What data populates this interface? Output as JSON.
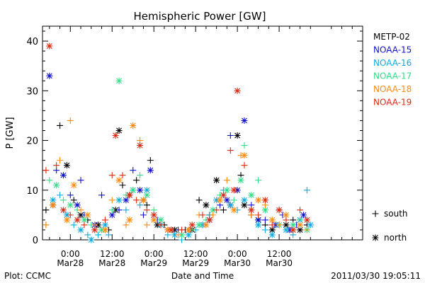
{
  "chart_data": {
    "type": "scatter",
    "title": "Hemispheric Power [GW]",
    "ylabel": "P [GW]",
    "xlabel": "Date and Time",
    "ylim": [
      0,
      43
    ],
    "xlim": [
      -8,
      84
    ],
    "yticks": [
      0,
      10,
      20,
      30,
      40
    ],
    "xticks": [
      {
        "x": 0,
        "time": "0:00",
        "date": "Mar28"
      },
      {
        "x": 12,
        "time": "12:00",
        "date": "Mar28"
      },
      {
        "x": 24,
        "time": "0:00",
        "date": "Mar29"
      },
      {
        "x": 36,
        "time": "12:00",
        "date": "Mar29"
      },
      {
        "x": 48,
        "time": "0:00",
        "date": "Mar30"
      },
      {
        "x": 60,
        "time": "12:00",
        "date": "Mar30"
      }
    ],
    "x_units": "hours from 2011-03-28 00:00 UT",
    "series": [
      {
        "name": "METP-02",
        "color": "#000000",
        "points": [
          [
            -7,
            6,
            "s"
          ],
          [
            -5,
            7,
            "n"
          ],
          [
            -3,
            23,
            "s"
          ],
          [
            -1,
            15,
            "n"
          ],
          [
            1,
            8,
            "s"
          ],
          [
            3,
            5,
            "n"
          ],
          [
            5,
            4,
            "s"
          ],
          [
            8,
            3,
            "n"
          ],
          [
            11,
            2,
            "s"
          ],
          [
            13,
            6,
            "n"
          ],
          [
            14,
            22,
            "n"
          ],
          [
            15,
            11,
            "s"
          ],
          [
            17,
            9,
            "n"
          ],
          [
            19,
            12,
            "s"
          ],
          [
            21,
            8,
            "n"
          ],
          [
            22,
            7,
            "s"
          ],
          [
            23,
            16,
            "s"
          ],
          [
            25,
            3,
            "n"
          ],
          [
            27,
            3,
            "s"
          ],
          [
            30,
            2,
            "n"
          ],
          [
            33,
            2,
            "s"
          ],
          [
            35,
            2,
            "n"
          ],
          [
            37,
            8,
            "s"
          ],
          [
            39,
            7,
            "n"
          ],
          [
            40,
            5,
            "s"
          ],
          [
            42,
            12,
            "n"
          ],
          [
            44,
            6,
            "s"
          ],
          [
            46,
            7,
            "n"
          ],
          [
            48,
            21,
            "n"
          ],
          [
            49,
            13,
            "s"
          ],
          [
            50,
            7,
            "n"
          ],
          [
            52,
            5,
            "s"
          ],
          [
            54,
            4,
            "n"
          ],
          [
            56,
            3,
            "s"
          ],
          [
            58,
            2,
            "n"
          ],
          [
            60,
            6,
            "s"
          ],
          [
            62,
            3,
            "n"
          ],
          [
            64,
            4,
            "s"
          ],
          [
            66,
            2,
            "n"
          ],
          [
            68,
            3,
            "s"
          ]
        ]
      },
      {
        "name": "NOAA-15",
        "color": "#1010cc",
        "points": [
          [
            -6,
            33,
            "n"
          ],
          [
            -4,
            14,
            "s"
          ],
          [
            -2,
            13,
            "n"
          ],
          [
            0,
            9,
            "s"
          ],
          [
            2,
            7,
            "n"
          ],
          [
            3,
            12,
            "s"
          ],
          [
            4,
            5,
            "s"
          ],
          [
            7,
            3,
            "n"
          ],
          [
            9,
            9,
            "s"
          ],
          [
            12,
            5,
            "n"
          ],
          [
            14,
            6,
            "s"
          ],
          [
            16,
            8,
            "n"
          ],
          [
            18,
            14,
            "s"
          ],
          [
            20,
            10,
            "n"
          ],
          [
            21,
            5,
            "s"
          ],
          [
            23,
            14,
            "n"
          ],
          [
            25,
            4,
            "s"
          ],
          [
            28,
            2,
            "n"
          ],
          [
            31,
            2,
            "s"
          ],
          [
            34,
            2,
            "n"
          ],
          [
            38,
            3,
            "s"
          ],
          [
            40,
            4,
            "n"
          ],
          [
            43,
            7,
            "s"
          ],
          [
            45,
            8,
            "n"
          ],
          [
            46,
            21,
            "s"
          ],
          [
            48,
            10,
            "n"
          ],
          [
            50,
            24,
            "n"
          ],
          [
            52,
            7,
            "s"
          ],
          [
            54,
            4,
            "n"
          ],
          [
            56,
            4,
            "s"
          ],
          [
            59,
            3,
            "n"
          ],
          [
            61,
            5,
            "s"
          ],
          [
            63,
            2,
            "n"
          ],
          [
            65,
            3,
            "s"
          ],
          [
            67,
            5,
            "n"
          ]
        ]
      },
      {
        "name": "NOAA-16",
        "color": "#10aadd",
        "points": [
          [
            -7,
            3,
            "s"
          ],
          [
            -5,
            8,
            "n"
          ],
          [
            -3,
            9,
            "s"
          ],
          [
            -1,
            5,
            "n"
          ],
          [
            1,
            3,
            "s"
          ],
          [
            3,
            2,
            "n"
          ],
          [
            5,
            1,
            "s"
          ],
          [
            6,
            0,
            "n"
          ],
          [
            8,
            1,
            "s"
          ],
          [
            10,
            3,
            "n"
          ],
          [
            11,
            1,
            "s"
          ],
          [
            14,
            8,
            "n"
          ],
          [
            16,
            6,
            "s"
          ],
          [
            18,
            10,
            "n"
          ],
          [
            20,
            7,
            "s"
          ],
          [
            22,
            10,
            "n"
          ],
          [
            24,
            5,
            "s"
          ],
          [
            26,
            3,
            "n"
          ],
          [
            28,
            1,
            "s"
          ],
          [
            30,
            1,
            "n"
          ],
          [
            32,
            0,
            "s"
          ],
          [
            34,
            1,
            "n"
          ],
          [
            36,
            2,
            "s"
          ],
          [
            38,
            3,
            "n"
          ],
          [
            40,
            5,
            "s"
          ],
          [
            42,
            8,
            "n"
          ],
          [
            44,
            10,
            "s"
          ],
          [
            46,
            7,
            "n"
          ],
          [
            48,
            6,
            "s"
          ],
          [
            50,
            8,
            "n"
          ],
          [
            52,
            6,
            "s"
          ],
          [
            54,
            3,
            "n"
          ],
          [
            56,
            2,
            "s"
          ],
          [
            58,
            1,
            "n"
          ],
          [
            60,
            3,
            "s"
          ],
          [
            62,
            2,
            "n"
          ],
          [
            64,
            1,
            "s"
          ],
          [
            66,
            4,
            "n"
          ],
          [
            68,
            10,
            "s"
          ],
          [
            69,
            3,
            "n"
          ]
        ]
      },
      {
        "name": "NOAA-17",
        "color": "#33dd88",
        "points": [
          [
            -6,
            12,
            "s"
          ],
          [
            -4,
            11,
            "n"
          ],
          [
            -2,
            8,
            "s"
          ],
          [
            0,
            7,
            "n"
          ],
          [
            2,
            6,
            "s"
          ],
          [
            4,
            4,
            "n"
          ],
          [
            6,
            3,
            "s"
          ],
          [
            9,
            2,
            "n"
          ],
          [
            12,
            6,
            "s"
          ],
          [
            14,
            32,
            "n"
          ],
          [
            16,
            9,
            "s"
          ],
          [
            18,
            10,
            "n"
          ],
          [
            20,
            13,
            "s"
          ],
          [
            22,
            9,
            "n"
          ],
          [
            24,
            6,
            "s"
          ],
          [
            26,
            4,
            "n"
          ],
          [
            29,
            2,
            "s"
          ],
          [
            32,
            1,
            "n"
          ],
          [
            35,
            2,
            "s"
          ],
          [
            37,
            3,
            "n"
          ],
          [
            39,
            4,
            "s"
          ],
          [
            41,
            6,
            "n"
          ],
          [
            43,
            9,
            "s"
          ],
          [
            45,
            10,
            "n"
          ],
          [
            47,
            8,
            "s"
          ],
          [
            49,
            12,
            "n"
          ],
          [
            50,
            19,
            "s"
          ],
          [
            52,
            9,
            "n"
          ],
          [
            54,
            12,
            "s"
          ],
          [
            56,
            6,
            "n"
          ],
          [
            58,
            4,
            "s"
          ],
          [
            60,
            3,
            "n"
          ],
          [
            62,
            5,
            "s"
          ],
          [
            64,
            3,
            "n"
          ],
          [
            66,
            4,
            "s"
          ],
          [
            68,
            2,
            "n"
          ]
        ]
      },
      {
        "name": "NOAA-18",
        "color": "#ff8a10",
        "points": [
          [
            -7,
            3,
            "s"
          ],
          [
            -5,
            7,
            "n"
          ],
          [
            -3,
            16,
            "s"
          ],
          [
            -1,
            4,
            "n"
          ],
          [
            0,
            24,
            "s"
          ],
          [
            1,
            11,
            "n"
          ],
          [
            3,
            6,
            "s"
          ],
          [
            5,
            5,
            "n"
          ],
          [
            7,
            3,
            "s"
          ],
          [
            10,
            2,
            "n"
          ],
          [
            12,
            8,
            "s"
          ],
          [
            14,
            12,
            "n"
          ],
          [
            16,
            3,
            "s"
          ],
          [
            17,
            4,
            "n"
          ],
          [
            18,
            23,
            "n"
          ],
          [
            20,
            20,
            "s"
          ],
          [
            21,
            8,
            "n"
          ],
          [
            22,
            3,
            "s"
          ],
          [
            24,
            4,
            "n"
          ],
          [
            26,
            3,
            "s"
          ],
          [
            28,
            2,
            "n"
          ],
          [
            31,
            1,
            "s"
          ],
          [
            34,
            2,
            "n"
          ],
          [
            37,
            5,
            "s"
          ],
          [
            39,
            3,
            "n"
          ],
          [
            41,
            5,
            "s"
          ],
          [
            43,
            8,
            "n"
          ],
          [
            45,
            12,
            "s"
          ],
          [
            47,
            6,
            "n"
          ],
          [
            49,
            17,
            "s"
          ],
          [
            50,
            17,
            "n"
          ],
          [
            52,
            5,
            "s"
          ],
          [
            54,
            8,
            "n"
          ],
          [
            56,
            7,
            "s"
          ],
          [
            58,
            4,
            "n"
          ],
          [
            60,
            3,
            "s"
          ],
          [
            62,
            5,
            "n"
          ],
          [
            64,
            2,
            "s"
          ],
          [
            66,
            3,
            "n"
          ],
          [
            68,
            2,
            "s"
          ]
        ]
      },
      {
        "name": "NOAA-19",
        "color": "#dd2a10",
        "points": [
          [
            -7,
            14,
            "s"
          ],
          [
            -6,
            39,
            "n"
          ],
          [
            -4,
            15,
            "s"
          ],
          [
            -2,
            6,
            "n"
          ],
          [
            0,
            5,
            "s"
          ],
          [
            2,
            4,
            "n"
          ],
          [
            4,
            3,
            "s"
          ],
          [
            7,
            2,
            "n"
          ],
          [
            10,
            4,
            "s"
          ],
          [
            12,
            13,
            "s"
          ],
          [
            13,
            21,
            "n"
          ],
          [
            15,
            13,
            "s"
          ],
          [
            17,
            9,
            "n"
          ],
          [
            19,
            8,
            "s"
          ],
          [
            20,
            19,
            "n"
          ],
          [
            22,
            6,
            "s"
          ],
          [
            24,
            5,
            "n"
          ],
          [
            26,
            3,
            "s"
          ],
          [
            29,
            2,
            "n"
          ],
          [
            32,
            2,
            "s"
          ],
          [
            35,
            3,
            "n"
          ],
          [
            38,
            5,
            "s"
          ],
          [
            40,
            4,
            "n"
          ],
          [
            42,
            6,
            "s"
          ],
          [
            44,
            9,
            "n"
          ],
          [
            46,
            18,
            "s"
          ],
          [
            47,
            10,
            "n"
          ],
          [
            48,
            30,
            "n"
          ],
          [
            50,
            15,
            "s"
          ],
          [
            52,
            6,
            "n"
          ],
          [
            54,
            5,
            "s"
          ],
          [
            56,
            8,
            "n"
          ],
          [
            58,
            3,
            "s"
          ],
          [
            60,
            6,
            "n"
          ],
          [
            62,
            4,
            "s"
          ],
          [
            64,
            2,
            "n"
          ],
          [
            66,
            6,
            "s"
          ],
          [
            68,
            4,
            "n"
          ]
        ]
      }
    ],
    "marker_legend": [
      {
        "symbol": "+",
        "label": "south"
      },
      {
        "symbol": "*",
        "label": "north"
      }
    ]
  },
  "footer": {
    "left": "Plot: CCMC",
    "right": "2011/03/30 19:05:11"
  }
}
